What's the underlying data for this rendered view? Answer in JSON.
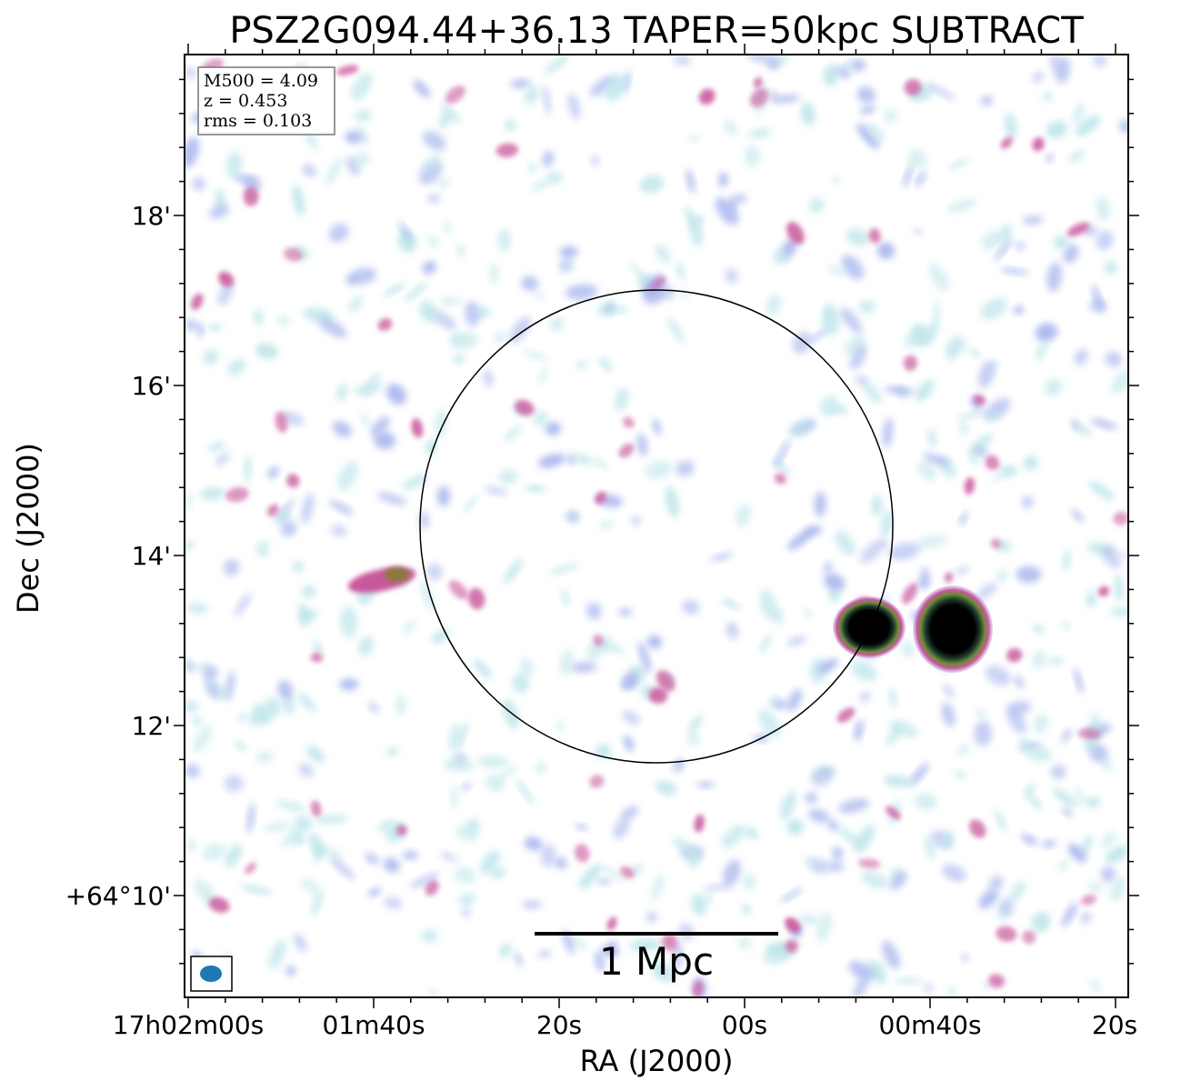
{
  "title": "PSZ2G094.44+36.13 TAPER=50kpc SUBTRACT",
  "info_box": {
    "mass": "M500 = 4.09",
    "redshift": "z = 0.453",
    "rms": "rms = 0.103"
  },
  "x_axis": {
    "label": "RA (J2000)",
    "ticks": [
      "17h02m00s",
      "01m40s",
      "20s",
      "00s",
      "00m40s",
      "20s"
    ]
  },
  "y_axis": {
    "label": "Dec (J2000)",
    "ticks": [
      "18'",
      "16'",
      "14'",
      "12'",
      "+64°10'"
    ]
  },
  "scale_bar": {
    "label": "1 Mpc"
  },
  "colors": {
    "noise_cyan": "#bfe6ea",
    "noise_blue": "#aab8ee",
    "emission_magenta": "#c8589c",
    "emission_olive": "#8a7a3a",
    "source_core": "#000000",
    "beam": "#1f77b4"
  }
}
